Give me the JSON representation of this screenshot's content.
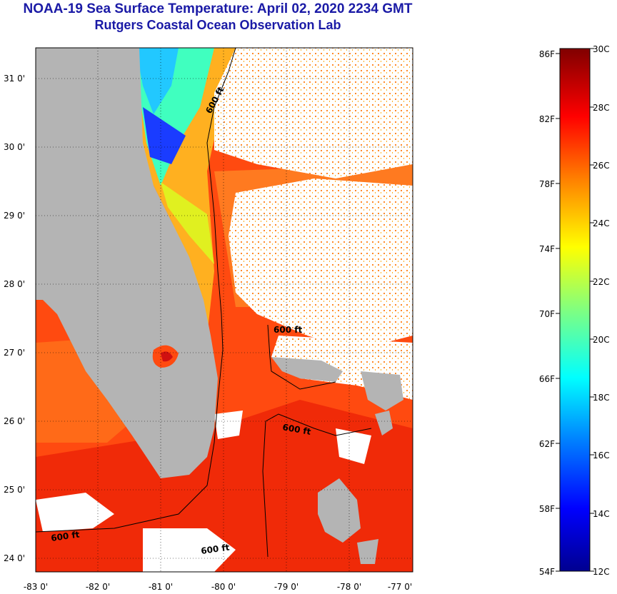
{
  "header": {
    "title": "NOAA-19 Sea Surface Temperature:  April 02, 2020 2234 GMT",
    "subtitle": "Rutgers Coastal Ocean Observation Lab"
  },
  "map": {
    "lon_ticks": [
      "-83 0'",
      "-82 0'",
      "-81 0'",
      "-80 0'",
      "-79 0'",
      "-78 0'",
      "-77 0'"
    ],
    "lat_ticks": [
      "31 0'",
      "30 0'",
      "29 0'",
      "28 0'",
      "27 0'",
      "26 0'",
      "25 0'",
      "24 0'"
    ],
    "isobath_labels": [
      "600 ft",
      "600 ft",
      "600 ft",
      "600 ft",
      "600 ft"
    ],
    "colors": {
      "land": "#b4b4b4",
      "cloud": "#ffffff",
      "isobath": "#000000"
    }
  },
  "colorbar": {
    "fahrenheit_labels": [
      "86F",
      "82F",
      "78F",
      "74F",
      "70F",
      "66F",
      "62F",
      "58F",
      "54F"
    ],
    "celsius_labels": [
      "30C",
      "28C",
      "26C",
      "24C",
      "22C",
      "20C",
      "18C",
      "16C",
      "14C",
      "12C"
    ],
    "gradient": [
      "#00008f",
      "#0000ff",
      "#0080ff",
      "#00ffff",
      "#80ff80",
      "#ffff00",
      "#ff8000",
      "#ff0000",
      "#800000"
    ]
  }
}
